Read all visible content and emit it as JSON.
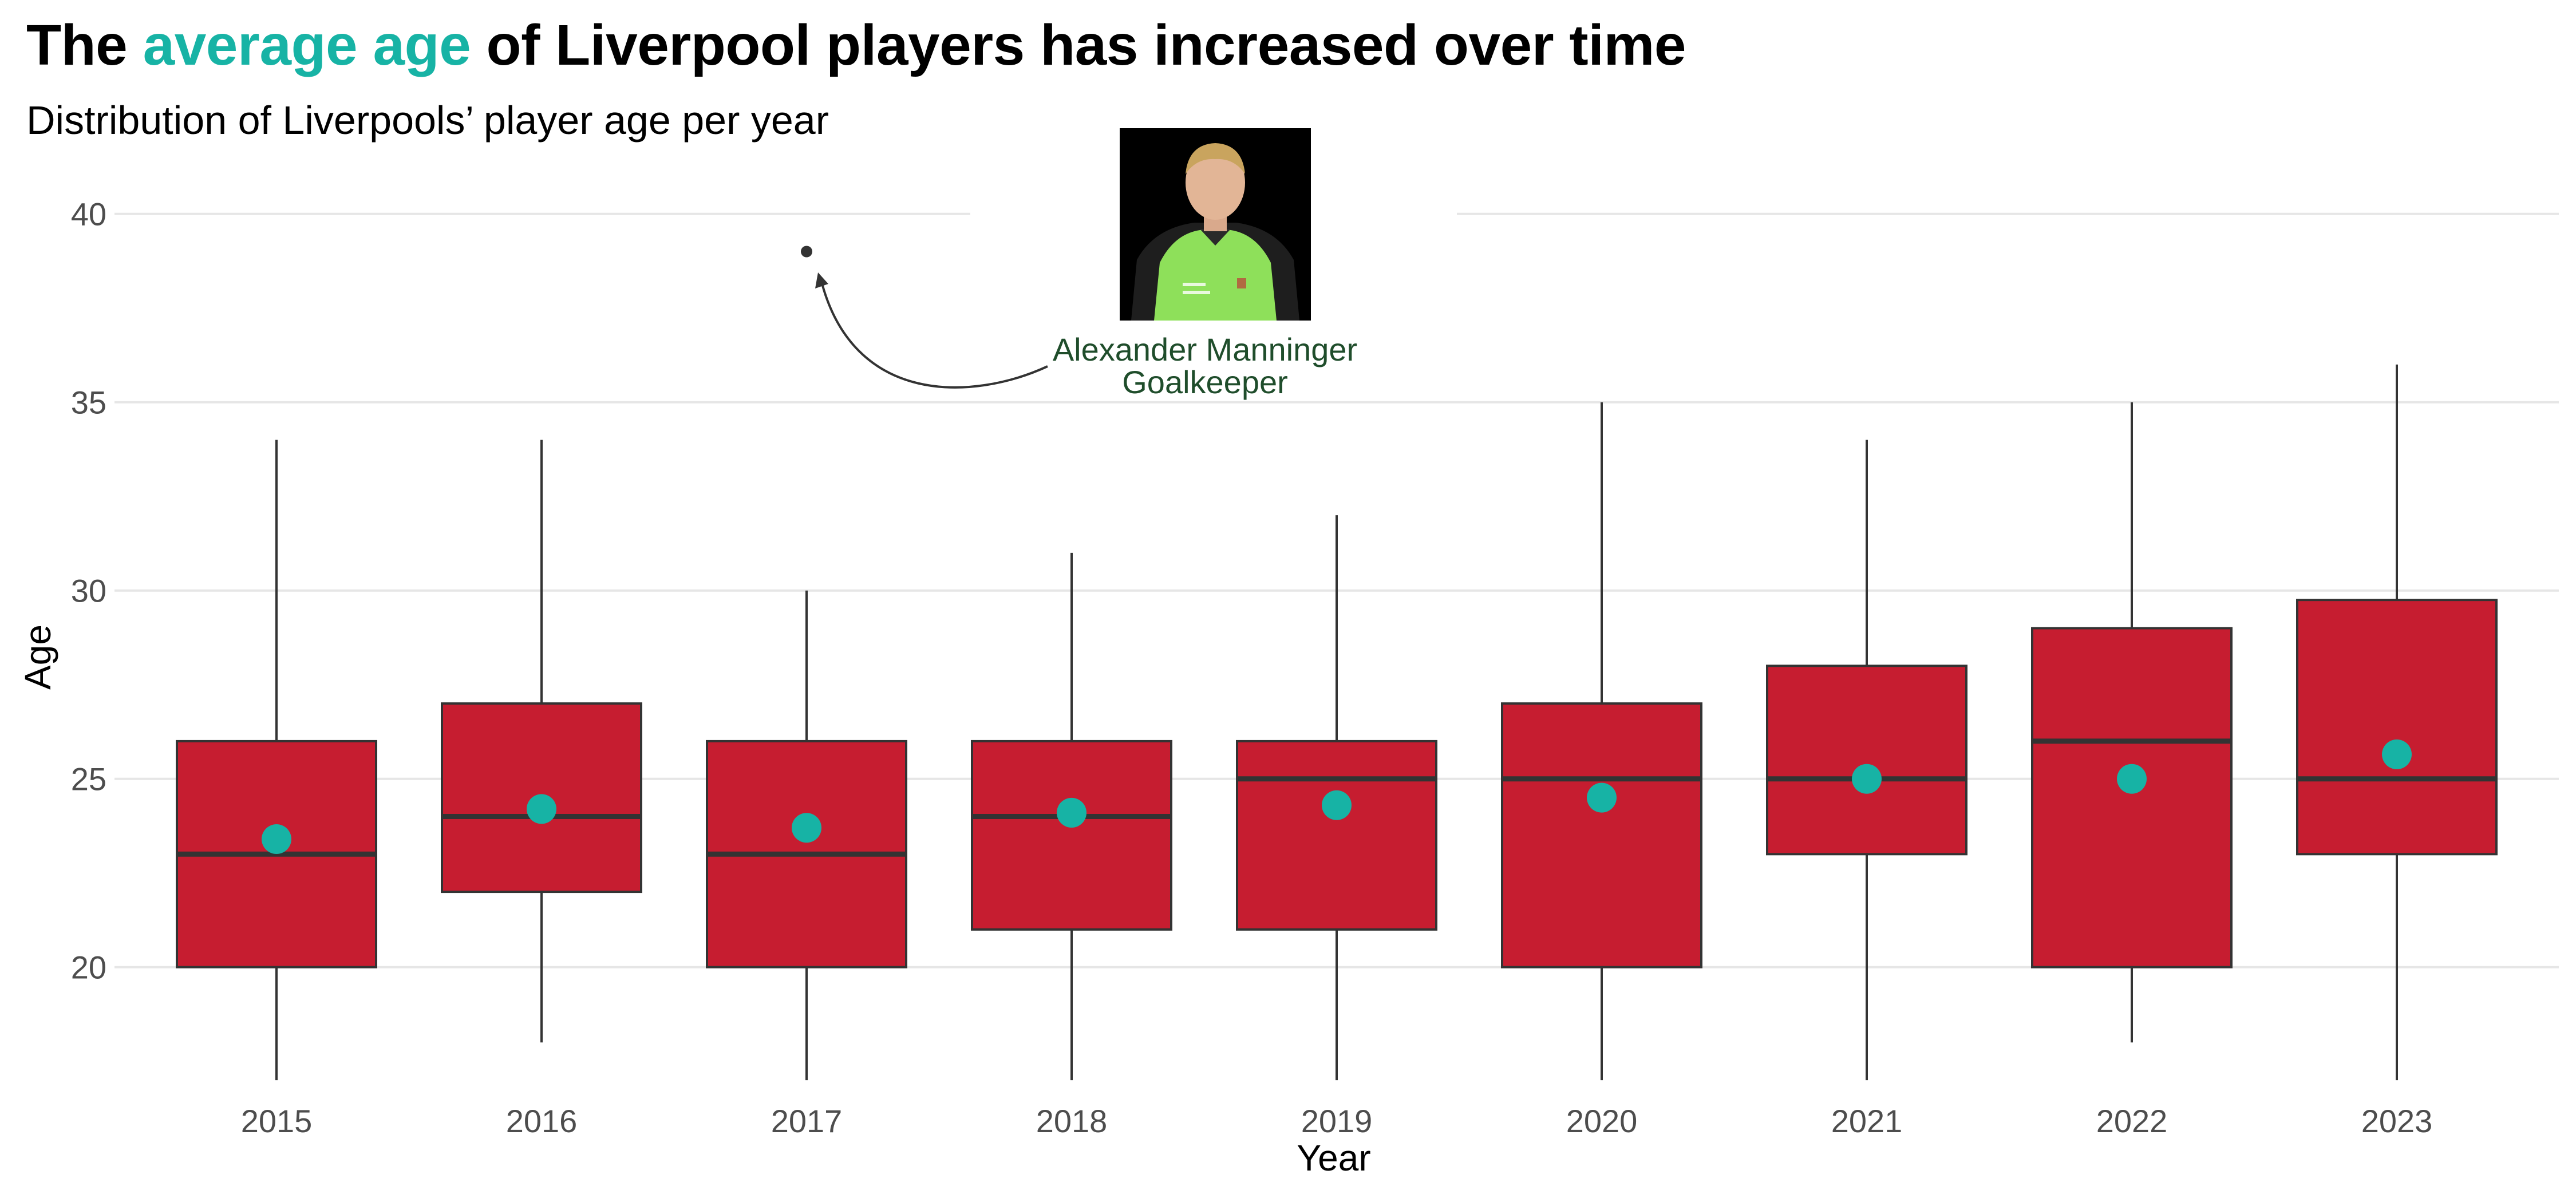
{
  "title": {
    "prefix": "The ",
    "highlight": "average age",
    "suffix": " of Liverpool players has increased over time"
  },
  "subtitle": "Distribution of Liverpools’ player age per year",
  "colors": {
    "box_fill": "#C61D30",
    "box_stroke": "#333333",
    "mean_point": "#17B3A5",
    "grid": "#E6E6E6",
    "highlight": "#17B3A5",
    "annotation_text": "#1F4D2B"
  },
  "annotation": {
    "name": "Alexander Manninger",
    "role": "Goalkeeper",
    "photo_icon": "player-photo-icon"
  },
  "chart_data": {
    "type": "box",
    "xlabel": "Year",
    "ylabel": "Age",
    "ylim": [
      16.5,
      41.5
    ],
    "yticks": [
      20,
      25,
      30,
      35,
      40
    ],
    "grid": true,
    "legend": "none",
    "categories": [
      "2015",
      "2016",
      "2017",
      "2018",
      "2019",
      "2020",
      "2021",
      "2022",
      "2023"
    ],
    "boxes": [
      {
        "year": "2015",
        "min": 17,
        "q1": 20,
        "median": 23,
        "q3": 26,
        "max": 34,
        "mean": 23.4
      },
      {
        "year": "2016",
        "min": 18,
        "q1": 22,
        "median": 24,
        "q3": 27,
        "max": 34,
        "mean": 24.2
      },
      {
        "year": "2017",
        "min": 17,
        "q1": 20,
        "median": 23,
        "q3": 26,
        "max": 30,
        "mean": 23.7
      },
      {
        "year": "2018",
        "min": 17,
        "q1": 21,
        "median": 24,
        "q3": 26,
        "max": 31,
        "mean": 24.1
      },
      {
        "year": "2019",
        "min": 17,
        "q1": 21,
        "median": 25,
        "q3": 26,
        "max": 32,
        "mean": 24.3
      },
      {
        "year": "2020",
        "min": 17,
        "q1": 20,
        "median": 25,
        "q3": 27,
        "max": 35,
        "mean": 24.5
      },
      {
        "year": "2021",
        "min": 17,
        "q1": 23,
        "median": 25,
        "q3": 28,
        "max": 34,
        "mean": 25.0
      },
      {
        "year": "2022",
        "min": 18,
        "q1": 20,
        "median": 26,
        "q3": 29,
        "max": 35,
        "mean": 25.0
      },
      {
        "year": "2023",
        "min": 17,
        "q1": 23,
        "median": 25,
        "q3": 29.75,
        "max": 36,
        "mean": 25.65
      }
    ],
    "outliers": [
      {
        "year": "2017",
        "age": 39
      }
    ]
  }
}
